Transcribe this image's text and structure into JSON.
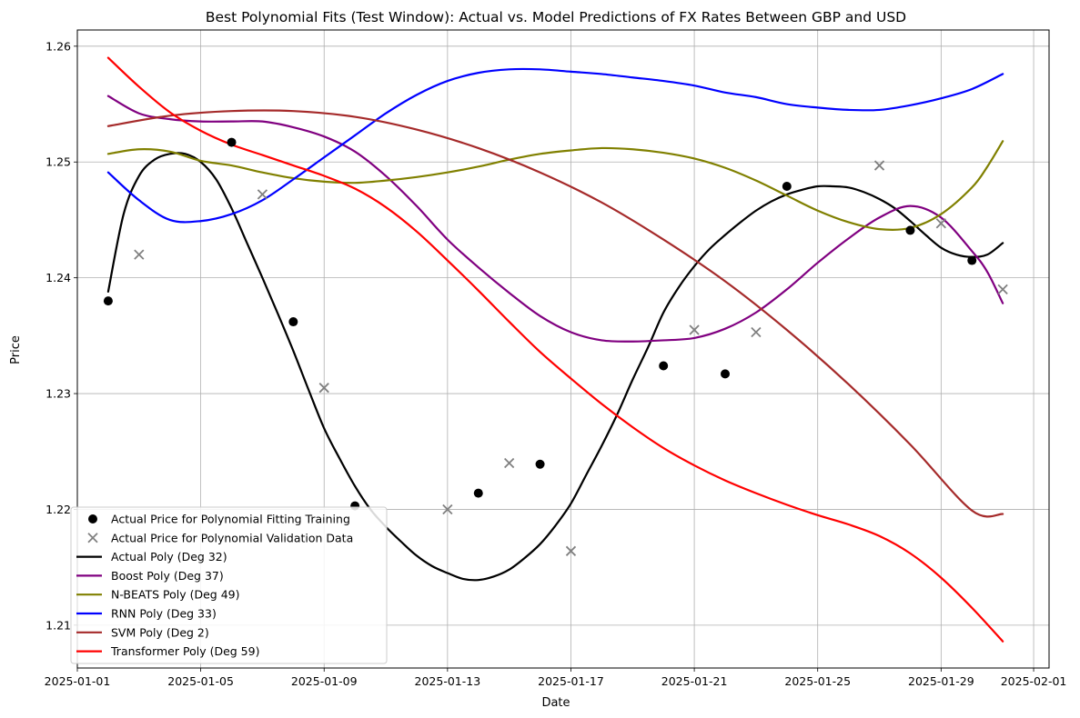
{
  "chart_data": {
    "type": "line",
    "title": "Best Polynomial Fits (Test Window): Actual vs. Model Predictions of FX Rates Between GBP and USD",
    "xlabel": "Date",
    "ylabel": "Price",
    "xlim": [
      "2025-01-01T00:00",
      "2025-02-01T12:00"
    ],
    "ylim": [
      1.2063,
      1.2614
    ],
    "grid": true,
    "legend_position": "lower-left",
    "x_ticks": [
      "2025-01-01",
      "2025-01-05",
      "2025-01-09",
      "2025-01-13",
      "2025-01-17",
      "2025-01-21",
      "2025-01-25",
      "2025-01-29",
      "2025-02-01"
    ],
    "y_ticks": [
      1.21,
      1.22,
      1.23,
      1.24,
      1.25,
      1.26
    ],
    "training_points": {
      "name": "Actual Price for Polynomial Fitting Training",
      "color": "#000000",
      "marker": "circle",
      "points": [
        [
          "2025-01-02",
          1.238
        ],
        [
          "2025-01-06",
          1.2517
        ],
        [
          "2025-01-08",
          1.2362
        ],
        [
          "2025-01-10",
          1.2203
        ],
        [
          "2025-01-14",
          1.2214
        ],
        [
          "2025-01-16",
          1.2239
        ],
        [
          "2025-01-20",
          1.2324
        ],
        [
          "2025-01-22",
          1.2317
        ],
        [
          "2025-01-24",
          1.2479
        ],
        [
          "2025-01-28",
          1.2441
        ],
        [
          "2025-01-30",
          1.2415
        ]
      ]
    },
    "validation_points": {
      "name": "Actual Price for Polynomial Validation Data",
      "color": "#808080",
      "marker": "x",
      "points": [
        [
          "2025-01-03",
          1.242
        ],
        [
          "2025-01-07",
          1.2472
        ],
        [
          "2025-01-09",
          1.2305
        ],
        [
          "2025-01-13",
          1.22
        ],
        [
          "2025-01-15",
          1.224
        ],
        [
          "2025-01-17",
          1.2164
        ],
        [
          "2025-01-21",
          1.2355
        ],
        [
          "2025-01-23",
          1.2353
        ],
        [
          "2025-01-27",
          1.2497
        ],
        [
          "2025-01-29",
          1.2447
        ],
        [
          "2025-01-31",
          1.239
        ]
      ]
    },
    "series": [
      {
        "name": "Actual Poly (Deg 32)",
        "color": "#000000",
        "points": [
          [
            "2025-01-02",
            1.2388
          ],
          [
            "2025-01-02T12:00",
            1.2455
          ],
          [
            "2025-01-03",
            1.2488
          ],
          [
            "2025-01-03T12:00",
            1.2502
          ],
          [
            "2025-01-04",
            1.2507
          ],
          [
            "2025-01-04T12:00",
            1.2507
          ],
          [
            "2025-01-05",
            1.25
          ],
          [
            "2025-01-05T12:00",
            1.2485
          ],
          [
            "2025-01-06",
            1.246
          ],
          [
            "2025-01-06T12:00",
            1.243
          ],
          [
            "2025-01-07",
            1.24
          ],
          [
            "2025-01-07T12:00",
            1.2369
          ],
          [
            "2025-01-08",
            1.2337
          ],
          [
            "2025-01-08T12:00",
            1.2303
          ],
          [
            "2025-01-09",
            1.227
          ],
          [
            "2025-01-09T12:00",
            1.2244
          ],
          [
            "2025-01-10",
            1.222
          ],
          [
            "2025-01-10T12:00",
            1.22
          ],
          [
            "2025-01-11",
            1.2185
          ],
          [
            "2025-01-11T12:00",
            1.2172
          ],
          [
            "2025-01-12",
            1.216
          ],
          [
            "2025-01-12T12:00",
            1.2151
          ],
          [
            "2025-01-13",
            1.2145
          ],
          [
            "2025-01-13T12:00",
            1.214
          ],
          [
            "2025-01-14",
            1.2139
          ],
          [
            "2025-01-14T12:00",
            1.2142
          ],
          [
            "2025-01-15",
            1.2148
          ],
          [
            "2025-01-15T12:00",
            1.2158
          ],
          [
            "2025-01-16",
            1.217
          ],
          [
            "2025-01-16T12:00",
            1.2186
          ],
          [
            "2025-01-17",
            1.2205
          ],
          [
            "2025-01-17T12:00",
            1.223
          ],
          [
            "2025-01-18",
            1.2255
          ],
          [
            "2025-01-18T12:00",
            1.2282
          ],
          [
            "2025-01-19",
            1.2312
          ],
          [
            "2025-01-19T12:00",
            1.234
          ],
          [
            "2025-01-20",
            1.237
          ],
          [
            "2025-01-20T12:00",
            1.2392
          ],
          [
            "2025-01-21",
            1.241
          ],
          [
            "2025-01-21T12:00",
            1.2425
          ],
          [
            "2025-01-22",
            1.2437
          ],
          [
            "2025-01-22T12:00",
            1.2448
          ],
          [
            "2025-01-23",
            1.2458
          ],
          [
            "2025-01-23T12:00",
            1.2466
          ],
          [
            "2025-01-24",
            1.2472
          ],
          [
            "2025-01-24T12:00",
            1.2476
          ],
          [
            "2025-01-25",
            1.2479
          ],
          [
            "2025-01-25T12:00",
            1.2479
          ],
          [
            "2025-01-26",
            1.2478
          ],
          [
            "2025-01-26T12:00",
            1.2474
          ],
          [
            "2025-01-27",
            1.2468
          ],
          [
            "2025-01-27T12:00",
            1.246
          ],
          [
            "2025-01-28",
            1.2449
          ],
          [
            "2025-01-28T12:00",
            1.2437
          ],
          [
            "2025-01-29",
            1.2426
          ],
          [
            "2025-01-29T12:00",
            1.242
          ],
          [
            "2025-01-30",
            1.2418
          ],
          [
            "2025-01-30T12:00",
            1.242
          ],
          [
            "2025-01-31",
            1.243
          ]
        ]
      },
      {
        "name": "Boost Poly (Deg 37)",
        "color": "#800080",
        "points": [
          [
            "2025-01-02",
            1.2557
          ],
          [
            "2025-01-03",
            1.2542
          ],
          [
            "2025-01-04",
            1.2537
          ],
          [
            "2025-01-05",
            1.2535
          ],
          [
            "2025-01-06",
            1.2535
          ],
          [
            "2025-01-07",
            1.2535
          ],
          [
            "2025-01-08",
            1.253
          ],
          [
            "2025-01-09",
            1.2522
          ],
          [
            "2025-01-10",
            1.2509
          ],
          [
            "2025-01-11",
            1.2488
          ],
          [
            "2025-01-12",
            1.2462
          ],
          [
            "2025-01-13",
            1.2433
          ],
          [
            "2025-01-14",
            1.2409
          ],
          [
            "2025-01-15",
            1.2387
          ],
          [
            "2025-01-16",
            1.2367
          ],
          [
            "2025-01-17",
            1.2353
          ],
          [
            "2025-01-18",
            1.2346
          ],
          [
            "2025-01-19",
            1.2345
          ],
          [
            "2025-01-20",
            1.2346
          ],
          [
            "2025-01-21",
            1.2348
          ],
          [
            "2025-01-22",
            1.2356
          ],
          [
            "2025-01-23",
            1.237
          ],
          [
            "2025-01-24",
            1.239
          ],
          [
            "2025-01-25",
            1.2413
          ],
          [
            "2025-01-26",
            1.2434
          ],
          [
            "2025-01-27",
            1.2452
          ],
          [
            "2025-01-28",
            1.2462
          ],
          [
            "2025-01-29",
            1.2452
          ],
          [
            "2025-01-30",
            1.2423
          ],
          [
            "2025-01-30T12:00",
            1.2405
          ],
          [
            "2025-01-31",
            1.2378
          ]
        ]
      },
      {
        "name": "N-BEATS Poly (Deg 49)",
        "color": "#808000",
        "points": [
          [
            "2025-01-02",
            1.2507
          ],
          [
            "2025-01-03",
            1.2511
          ],
          [
            "2025-01-04",
            1.2509
          ],
          [
            "2025-01-05",
            1.2501
          ],
          [
            "2025-01-06",
            1.2497
          ],
          [
            "2025-01-07",
            1.2491
          ],
          [
            "2025-01-08",
            1.2486
          ],
          [
            "2025-01-09",
            1.2483
          ],
          [
            "2025-01-10",
            1.2482
          ],
          [
            "2025-01-11",
            1.2484
          ],
          [
            "2025-01-12",
            1.2487
          ],
          [
            "2025-01-13",
            1.2491
          ],
          [
            "2025-01-14",
            1.2496
          ],
          [
            "2025-01-15",
            1.2502
          ],
          [
            "2025-01-16",
            1.2507
          ],
          [
            "2025-01-17",
            1.251
          ],
          [
            "2025-01-18",
            1.2512
          ],
          [
            "2025-01-19",
            1.2511
          ],
          [
            "2025-01-20",
            1.2508
          ],
          [
            "2025-01-21",
            1.2503
          ],
          [
            "2025-01-22",
            1.2495
          ],
          [
            "2025-01-23",
            1.2484
          ],
          [
            "2025-01-24",
            1.2471
          ],
          [
            "2025-01-25",
            1.2458
          ],
          [
            "2025-01-26",
            1.2448
          ],
          [
            "2025-01-27",
            1.2442
          ],
          [
            "2025-01-28",
            1.2443
          ],
          [
            "2025-01-29",
            1.2455
          ],
          [
            "2025-01-30",
            1.2478
          ],
          [
            "2025-01-30T12:00",
            1.2496
          ],
          [
            "2025-01-31",
            1.2518
          ]
        ]
      },
      {
        "name": "RNN Poly (Deg 33)",
        "color": "#0000ff",
        "points": [
          [
            "2025-01-02",
            1.2491
          ],
          [
            "2025-01-03",
            1.2467
          ],
          [
            "2025-01-04",
            1.245
          ],
          [
            "2025-01-05",
            1.2449
          ],
          [
            "2025-01-06",
            1.2455
          ],
          [
            "2025-01-07",
            1.2467
          ],
          [
            "2025-01-08",
            1.2485
          ],
          [
            "2025-01-09",
            1.2504
          ],
          [
            "2025-01-10",
            1.2523
          ],
          [
            "2025-01-11",
            1.2542
          ],
          [
            "2025-01-12",
            1.2558
          ],
          [
            "2025-01-13",
            1.257
          ],
          [
            "2025-01-14",
            1.2577
          ],
          [
            "2025-01-15",
            1.258
          ],
          [
            "2025-01-16",
            1.258
          ],
          [
            "2025-01-17",
            1.2578
          ],
          [
            "2025-01-18",
            1.2576
          ],
          [
            "2025-01-19",
            1.2573
          ],
          [
            "2025-01-20",
            1.257
          ],
          [
            "2025-01-21",
            1.2566
          ],
          [
            "2025-01-22",
            1.256
          ],
          [
            "2025-01-23",
            1.2556
          ],
          [
            "2025-01-24",
            1.255
          ],
          [
            "2025-01-25",
            1.2547
          ],
          [
            "2025-01-26",
            1.2545
          ],
          [
            "2025-01-27",
            1.2545
          ],
          [
            "2025-01-28",
            1.2549
          ],
          [
            "2025-01-29",
            1.2555
          ],
          [
            "2025-01-30",
            1.2563
          ],
          [
            "2025-01-31",
            1.2576
          ]
        ]
      },
      {
        "name": "SVM Poly (Deg 2)",
        "color": "#a52a2a",
        "points": [
          [
            "2025-01-02",
            1.2531
          ],
          [
            "2025-01-04",
            1.254
          ],
          [
            "2025-01-06",
            1.2544
          ],
          [
            "2025-01-08",
            1.2544
          ],
          [
            "2025-01-10",
            1.2539
          ],
          [
            "2025-01-12",
            1.2528
          ],
          [
            "2025-01-14",
            1.2512
          ],
          [
            "2025-01-16",
            1.2491
          ],
          [
            "2025-01-18",
            1.2465
          ],
          [
            "2025-01-20",
            1.2433
          ],
          [
            "2025-01-22",
            1.2397
          ],
          [
            "2025-01-24",
            1.2355
          ],
          [
            "2025-01-26",
            1.2308
          ],
          [
            "2025-01-28",
            1.2256
          ],
          [
            "2025-01-30",
            1.2199
          ],
          [
            "2025-01-31",
            1.2196
          ]
        ]
      },
      {
        "name": "Transformer Poly (Deg 59)",
        "color": "#ff0000",
        "points": [
          [
            "2025-01-02",
            1.259
          ],
          [
            "2025-01-03",
            1.2565
          ],
          [
            "2025-01-04",
            1.2543
          ],
          [
            "2025-01-05",
            1.2527
          ],
          [
            "2025-01-06",
            1.2515
          ],
          [
            "2025-01-07",
            1.2506
          ],
          [
            "2025-01-08",
            1.2497
          ],
          [
            "2025-01-09",
            1.2488
          ],
          [
            "2025-01-10",
            1.2477
          ],
          [
            "2025-01-11",
            1.2461
          ],
          [
            "2025-01-12",
            1.244
          ],
          [
            "2025-01-13",
            1.2415
          ],
          [
            "2025-01-14",
            1.2389
          ],
          [
            "2025-01-15",
            1.2362
          ],
          [
            "2025-01-16",
            1.2336
          ],
          [
            "2025-01-17",
            1.2313
          ],
          [
            "2025-01-18",
            1.2291
          ],
          [
            "2025-01-19",
            1.2271
          ],
          [
            "2025-01-20",
            1.2253
          ],
          [
            "2025-01-21",
            1.2238
          ],
          [
            "2025-01-22",
            1.2225
          ],
          [
            "2025-01-23",
            1.2214
          ],
          [
            "2025-01-24",
            1.2204
          ],
          [
            "2025-01-25",
            1.2195
          ],
          [
            "2025-01-26",
            1.2187
          ],
          [
            "2025-01-27",
            1.2177
          ],
          [
            "2025-01-28",
            1.2162
          ],
          [
            "2025-01-29",
            1.2141
          ],
          [
            "2025-01-30",
            1.2115
          ],
          [
            "2025-01-31",
            1.2086
          ]
        ]
      }
    ]
  }
}
